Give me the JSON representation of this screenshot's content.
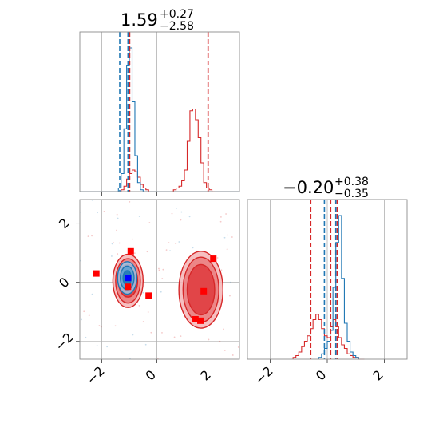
{
  "chart_data": [
    {
      "type": "histogram",
      "panel": "top-left",
      "title": {
        "value": "1.59",
        "plus": "+0.27",
        "minus": "−2.58"
      },
      "xlim": [
        -2.8,
        3.0
      ],
      "xticks": [
        -2,
        0,
        2
      ],
      "grid": true,
      "series": [
        {
          "color": "#d62728",
          "bin_edges_start": -2.8,
          "bin_width": 0.1,
          "counts": [
            0,
            0,
            0,
            0,
            0,
            0,
            0,
            0,
            0,
            0,
            0,
            0,
            0,
            0,
            0,
            1,
            3,
            7,
            10,
            12,
            11,
            8,
            4,
            2,
            1,
            0,
            0,
            0,
            0,
            0,
            0,
            0,
            0,
            0,
            0,
            0,
            0,
            0,
            0,
            0,
            0,
            0,
            0,
            0,
            0,
            0,
            0,
            0,
            0,
            0,
            0,
            0,
            0,
            0,
            0,
            0,
            0,
            0
          ]
        },
        {
          "color": "#1f77b4",
          "bin_edges_start": -2.8,
          "bin_width": 0.1,
          "counts": [
            0,
            0,
            0,
            0,
            0,
            0,
            0,
            0,
            0,
            0,
            0,
            0,
            0,
            0,
            2,
            10,
            35,
            70,
            80,
            50,
            20,
            5,
            1,
            0,
            0,
            0,
            0,
            0,
            0,
            0,
            0,
            0,
            0,
            0,
            0,
            0,
            0,
            0,
            0,
            0,
            0,
            0,
            0,
            0,
            0,
            0,
            0,
            0,
            0,
            0,
            0,
            0,
            0,
            0,
            0,
            0,
            0,
            0
          ]
        },
        {
          "color": "#d62728",
          "bin_edges_start": 0.5,
          "bin_width": 0.1,
          "counts": [
            0,
            1,
            2,
            3,
            6,
            12,
            28,
            45,
            46,
            40,
            30,
            16,
            5,
            2,
            1,
            0
          ]
        }
      ],
      "quantile_lines": [
        {
          "color": "#1f77b4",
          "x": -1.35,
          "style": "dashed"
        },
        {
          "color": "#1f77b4",
          "x": -1.05,
          "style": "dashed"
        },
        {
          "color": "#d62728",
          "x": -0.99,
          "style": "dashed"
        },
        {
          "color": "#d62728",
          "x": 1.86,
          "style": "dashed"
        }
      ]
    },
    {
      "type": "scatter",
      "panel": "bottom-left",
      "xlim": [
        -2.8,
        3.0
      ],
      "ylim": [
        -2.6,
        2.8
      ],
      "xticks": [
        -2,
        0,
        2
      ],
      "yticks": [
        -2,
        0,
        2
      ],
      "xticklabels": [
        "−2",
        "0",
        "2"
      ],
      "yticklabels": [
        "−2",
        "0",
        "2"
      ],
      "grid": true,
      "contours": [
        {
          "color": "#d62728",
          "cx": -1.05,
          "cy": 0.05,
          "rx": [
            0.55,
            0.45,
            0.35
          ],
          "ry": [
            0.9,
            0.75,
            0.55
          ]
        },
        {
          "color": "#d62728",
          "cx": 1.6,
          "cy": -0.25,
          "rx": [
            0.8,
            0.65,
            0.5
          ],
          "ry": [
            1.3,
            1.1,
            0.85
          ]
        },
        {
          "color": "#1f77b4",
          "cx": -1.08,
          "cy": 0.15,
          "rx": [
            0.35,
            0.25,
            0.15
          ],
          "ry": [
            0.55,
            0.4,
            0.25
          ]
        }
      ],
      "markers": [
        {
          "color": "#ff0000",
          "x": -2.2,
          "y": 0.3
        },
        {
          "color": "#ff0000",
          "x": -0.95,
          "y": 1.05
        },
        {
          "color": "#ff0000",
          "x": -1.05,
          "y": -0.15
        },
        {
          "color": "#ff0000",
          "x": -0.3,
          "y": -0.45
        },
        {
          "color": "#ff0000",
          "x": 2.05,
          "y": 0.8
        },
        {
          "color": "#ff0000",
          "x": 1.7,
          "y": -0.3
        },
        {
          "color": "#ff0000",
          "x": 1.4,
          "y": -1.25
        },
        {
          "color": "#ff0000",
          "x": 1.58,
          "y": -1.3
        },
        {
          "color": "#0000ff",
          "x": -1.05,
          "y": 0.15
        }
      ]
    },
    {
      "type": "histogram",
      "panel": "bottom-right",
      "title": {
        "value": "−0.20",
        "plus": "+0.38",
        "minus": "−0.35"
      },
      "xlim": [
        -2.8,
        2.8
      ],
      "xticks": [
        -2,
        0,
        2
      ],
      "xticklabels": [
        "−2",
        "0",
        "2"
      ],
      "grid": true,
      "series": [
        {
          "color": "#d62728",
          "bin_edges_start": -1.2,
          "bin_width": 0.1,
          "counts": [
            1,
            2,
            4,
            7,
            10,
            13,
            17,
            22,
            25,
            22,
            17,
            13,
            12,
            18,
            22,
            18,
            12,
            8,
            6,
            3,
            2,
            1,
            1,
            0,
            0
          ]
        },
        {
          "color": "#1f77b4",
          "bin_edges_start": -0.3,
          "bin_width": 0.1,
          "counts": [
            1,
            3,
            6,
            10,
            16,
            40,
            65,
            80,
            45,
            20,
            10,
            4,
            2,
            1
          ]
        }
      ],
      "quantile_lines": [
        {
          "color": "#d62728",
          "x": -0.58,
          "style": "dashed"
        },
        {
          "color": "#1f77b4",
          "x": -0.1,
          "style": "dashed"
        },
        {
          "color": "#d62728",
          "x": 0.12,
          "style": "dashed"
        },
        {
          "color": "#1f77b4",
          "x": 0.3,
          "style": "dashed"
        },
        {
          "color": "#d62728",
          "x": 0.35,
          "style": "dashed"
        }
      ]
    }
  ]
}
